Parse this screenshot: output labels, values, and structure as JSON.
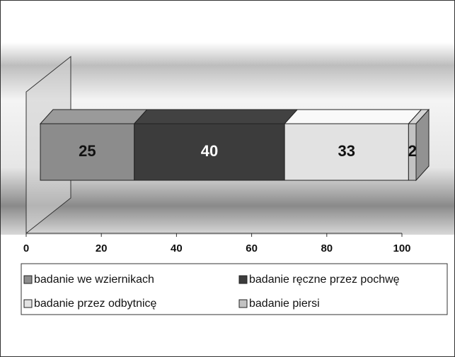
{
  "chart_data": {
    "type": "stacked-bar-3d",
    "orientation": "horizontal",
    "categories": [
      null
    ],
    "series": [
      {
        "name": "badanie we wziernikach",
        "color": "#8c8c8c",
        "values": [
          25
        ]
      },
      {
        "name": "badanie ręczne przez pochwę",
        "color": "#3c3c3c",
        "values": [
          40
        ]
      },
      {
        "name": "badanie przez odbytnicę",
        "color": "#e2e2e2",
        "values": [
          33
        ]
      },
      {
        "name": "badanie piersi",
        "color": "#c2c2c2",
        "values": [
          2
        ]
      }
    ],
    "xlim": [
      0,
      100
    ],
    "xticks": [
      0,
      20,
      40,
      60,
      80,
      100
    ],
    "legend": "bottom"
  }
}
